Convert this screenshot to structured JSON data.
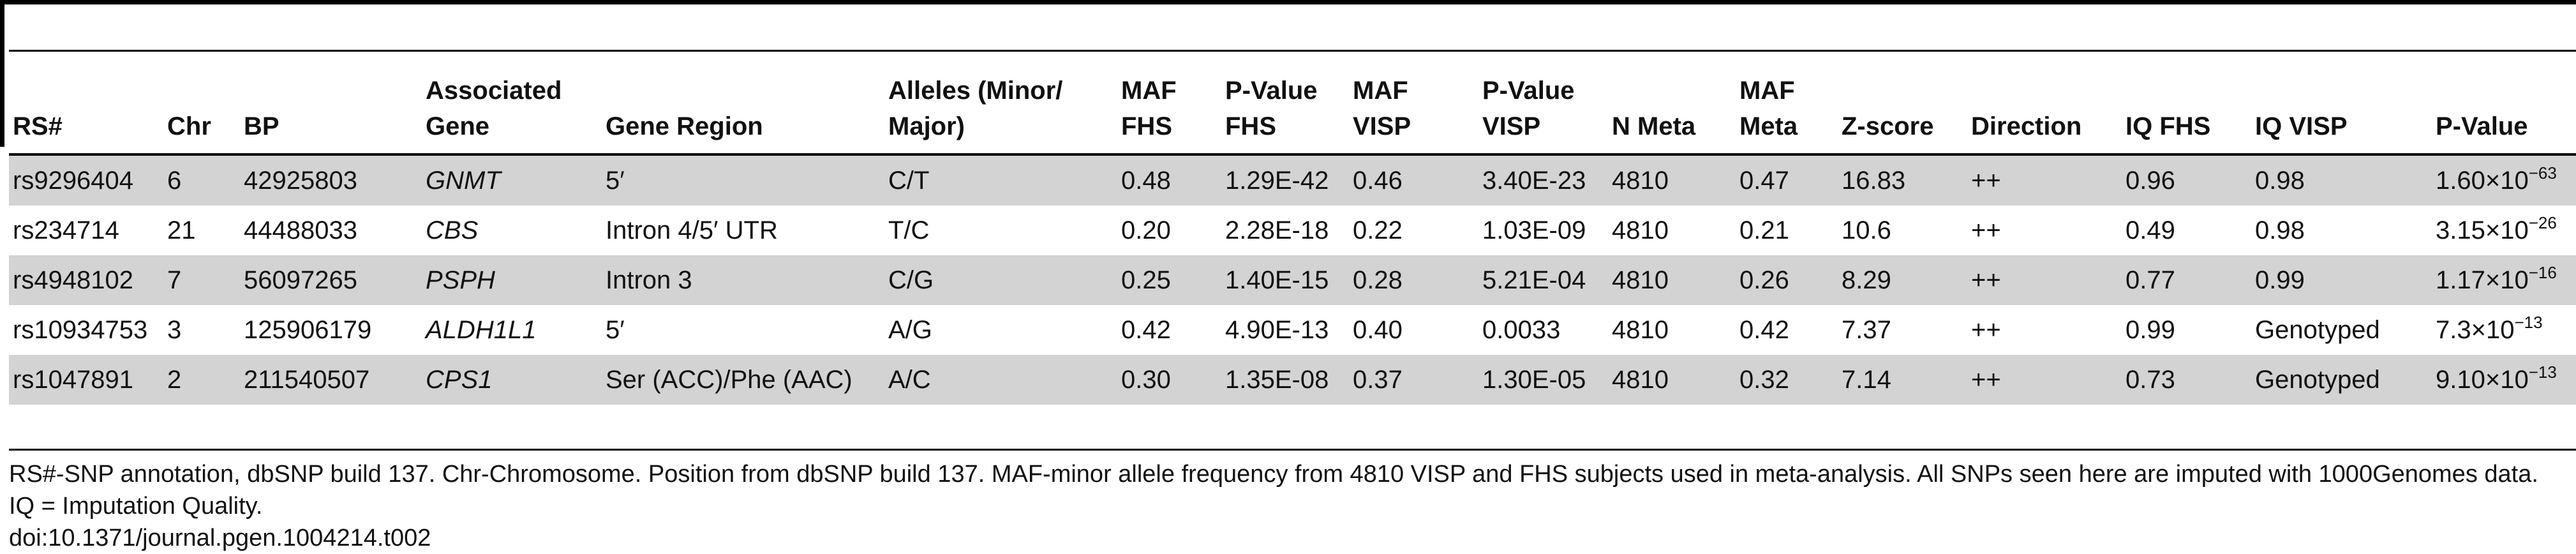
{
  "table": {
    "headers": [
      "RS#",
      "Chr",
      "BP",
      "Associated Gene",
      "Gene Region",
      "Alleles (Minor/ Major)",
      "MAF FHS",
      "P-Value FHS",
      "MAF VISP",
      "P-Value VISP",
      "N Meta",
      "MAF Meta",
      "Z-score",
      "Direction",
      "IQ FHS",
      "IQ VISP",
      "P-Value"
    ],
    "header_lines": [
      [
        "RS#"
      ],
      [
        "Chr"
      ],
      [
        "BP"
      ],
      [
        "Associated",
        "Gene"
      ],
      [
        "Gene Region"
      ],
      [
        "Alleles (Minor/",
        "Major)"
      ],
      [
        "MAF",
        "FHS"
      ],
      [
        "P-Value",
        "FHS"
      ],
      [
        "MAF",
        "VISP"
      ],
      [
        "P-Value",
        "VISP"
      ],
      [
        "N Meta"
      ],
      [
        "MAF",
        "Meta"
      ],
      [
        "Z-score"
      ],
      [
        "Direction"
      ],
      [
        "IQ FHS"
      ],
      [
        "IQ VISP"
      ],
      [
        "P-Value"
      ]
    ],
    "rows": [
      {
        "rs": "rs9296404",
        "chr": "6",
        "bp": "42925803",
        "gene": "GNMT",
        "region": "5′",
        "alleles": "C/T",
        "maf_fhs": "0.48",
        "p_fhs": "1.29E-42",
        "maf_visp": "0.46",
        "p_visp": "3.40E-23",
        "n_meta": "4810",
        "maf_meta": "0.47",
        "z": "16.83",
        "direction": "++",
        "iq_fhs": "0.96",
        "iq_visp": "0.98",
        "p_mantissa": "1.60×10",
        "p_exp": "−63"
      },
      {
        "rs": "rs234714",
        "chr": "21",
        "bp": "44488033",
        "gene": "CBS",
        "region": "Intron 4/5′ UTR",
        "alleles": "T/C",
        "maf_fhs": "0.20",
        "p_fhs": "2.28E-18",
        "maf_visp": "0.22",
        "p_visp": "1.03E-09",
        "n_meta": "4810",
        "maf_meta": "0.21",
        "z": "10.6",
        "direction": "++",
        "iq_fhs": "0.49",
        "iq_visp": "0.98",
        "p_mantissa": "3.15×10",
        "p_exp": "−26"
      },
      {
        "rs": "rs4948102",
        "chr": "7",
        "bp": "56097265",
        "gene": "PSPH",
        "region": "Intron 3",
        "alleles": "C/G",
        "maf_fhs": "0.25",
        "p_fhs": "1.40E-15",
        "maf_visp": "0.28",
        "p_visp": "5.21E-04",
        "n_meta": "4810",
        "maf_meta": "0.26",
        "z": "8.29",
        "direction": "++",
        "iq_fhs": "0.77",
        "iq_visp": "0.99",
        "p_mantissa": "1.17×10",
        "p_exp": "−16"
      },
      {
        "rs": "rs10934753",
        "chr": "3",
        "bp": "125906179",
        "gene": "ALDH1L1",
        "region": "5′",
        "alleles": "A/G",
        "maf_fhs": "0.42",
        "p_fhs": "4.90E-13",
        "maf_visp": "0.40",
        "p_visp": "0.0033",
        "n_meta": "4810",
        "maf_meta": "0.42",
        "z": "7.37",
        "direction": "++",
        "iq_fhs": "0.99",
        "iq_visp": "Genotyped",
        "p_mantissa": "7.3×10",
        "p_exp": "−13"
      },
      {
        "rs": "rs1047891",
        "chr": "2",
        "bp": "211540507",
        "gene": "CPS1",
        "region": "Ser (ACC)/Phe (AAC)",
        "alleles": "A/C",
        "maf_fhs": "0.30",
        "p_fhs": "1.35E-08",
        "maf_visp": "0.37",
        "p_visp": "1.30E-05",
        "n_meta": "4810",
        "maf_meta": "0.32",
        "z": "7.14",
        "direction": "++",
        "iq_fhs": "0.73",
        "iq_visp": "Genotyped",
        "p_mantissa": "9.10×10",
        "p_exp": "−13"
      }
    ]
  },
  "footnote": {
    "text": "RS#-SNP annotation, dbSNP build 137. Chr-Chromosome. Position from dbSNP build 137. MAF-minor allele frequency from 4810 VISP and FHS subjects used in meta-analysis. All SNPs seen here are imputed with 1000Genomes data. IQ = Imputation Quality.",
    "doi": "doi:10.1371/journal.pgen.1004214.t002"
  }
}
